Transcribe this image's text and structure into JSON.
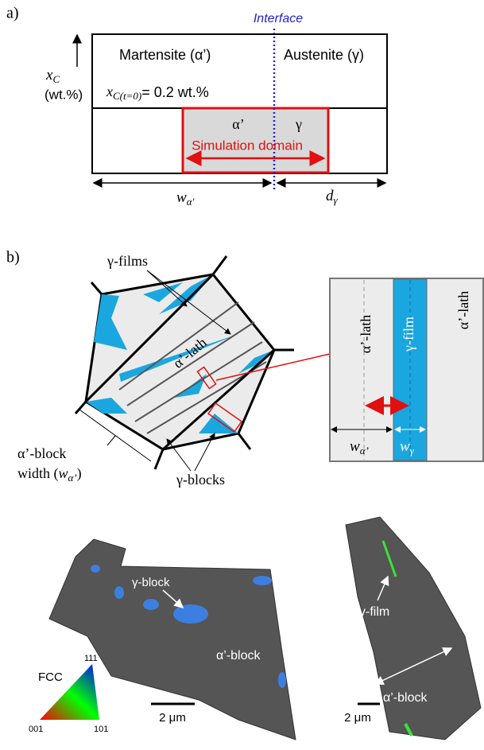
{
  "panel_a": {
    "label": "a)",
    "interface": "Interface",
    "axis_symbol": "x",
    "axis_subscript": "C",
    "axis_unit": "(wt.%)",
    "left_phase": "Martensite (α’)",
    "right_phase": "Austenite (γ)",
    "initial_symbol": "x",
    "initial_subscript": "C(t=0)",
    "initial_value": "= 0.2 wt.%",
    "domain_alpha": "α’",
    "domain_gamma": "γ",
    "domain_label": "Simulation domain",
    "width_symbol": "w",
    "width_subscript": "α′",
    "distance_symbol": "d",
    "distance_subscript": "γ"
  },
  "panel_b": {
    "label": "b)",
    "films": "γ-films",
    "lath": "α’-lath",
    "block_width_line1": "α’-block",
    "block_width_line2": "width (",
    "block_width_symbol": "w",
    "block_width_subscript": "α’",
    "block_width_close": ")",
    "blocks": "γ-blocks",
    "inset": {
      "left_lath": "α’-lath",
      "film": "γ-film",
      "right_lath": "α’-lath",
      "lath_symbol": "w",
      "lath_subscript": "α’",
      "film_symbol": "w",
      "film_subscript": "γ"
    }
  },
  "micrographs": {
    "left": {
      "block_gamma": "γ-block",
      "block_alpha": "α’-block",
      "scale": "2 μm"
    },
    "legend": {
      "title": "FCC",
      "top": "111",
      "left": "001",
      "right": "101"
    },
    "right": {
      "film": "γ-film",
      "block_alpha": "α’-block",
      "scale": "2 μm"
    }
  }
}
